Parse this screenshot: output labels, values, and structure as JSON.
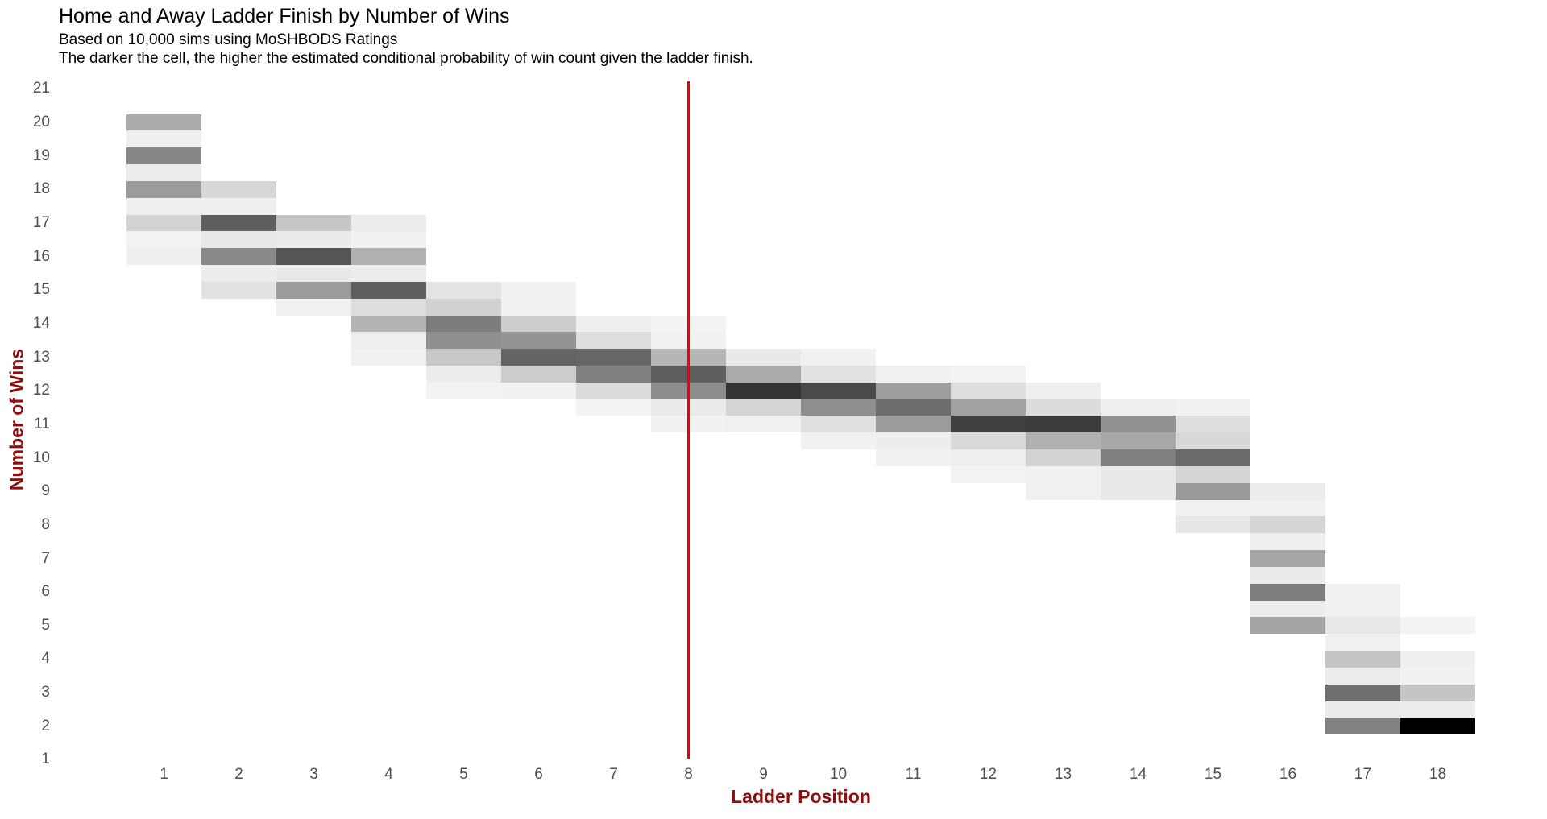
{
  "header": {
    "title": "Home and Away Ladder Finish by Number of Wins",
    "subtitle": "Based on 10,000 sims using MoSHBODS Ratings",
    "caption": "The darker the cell, the higher the estimated conditional probability of win count given the ladder finish."
  },
  "chart_data": {
    "type": "heatmap",
    "title": "Home and Away Ladder Finish by Number of Wins",
    "subtitle": "Based on 10,000 sims using MoSHBODS Ratings",
    "caption": "The darker the cell, the higher the estimated conditional probability of win count given the ladder finish.",
    "xlabel": "Ladder Position",
    "ylabel": "Number of Wins",
    "x_ticks": [
      1,
      2,
      3,
      4,
      5,
      6,
      7,
      8,
      9,
      10,
      11,
      12,
      13,
      14,
      15,
      16,
      17,
      18
    ],
    "y_ticks": [
      21,
      20,
      19,
      18,
      17,
      16,
      15,
      14,
      13,
      12,
      11,
      10,
      9,
      8,
      7,
      6,
      5,
      4,
      3,
      2,
      1
    ],
    "win_step": 0.5,
    "shading_note": "darker cell = higher estimated conditional probability of win count given ladder finish; grayscale hex per cell",
    "reference_line_x": 8,
    "legend_position": "none",
    "grid": false,
    "colors": {
      "reference_line": "#ee0000",
      "axis_title": "#8f0f0f",
      "tick_label": "#4d4d4d",
      "background": "#ffffff",
      "max_cell": "#000000"
    },
    "cells": [
      [
        20,
        1,
        "#ababab"
      ],
      [
        19.5,
        1,
        "#eeeeee"
      ],
      [
        19,
        1,
        "#878787"
      ],
      [
        18.5,
        1,
        "#ececec"
      ],
      [
        18,
        1,
        "#9b9b9b"
      ],
      [
        18,
        2,
        "#d7d7d7"
      ],
      [
        17.5,
        1,
        "#efefef"
      ],
      [
        17.5,
        2,
        "#efefef"
      ],
      [
        17,
        1,
        "#d2d2d2"
      ],
      [
        17,
        2,
        "#5e5e5e"
      ],
      [
        17,
        3,
        "#c6c6c6"
      ],
      [
        17,
        4,
        "#ececec"
      ],
      [
        16.5,
        1,
        "#f2f2f2"
      ],
      [
        16.5,
        2,
        "#e9e9e9"
      ],
      [
        16.5,
        3,
        "#ebebeb"
      ],
      [
        16.5,
        4,
        "#f1f1f1"
      ],
      [
        16,
        1,
        "#efefef"
      ],
      [
        16,
        2,
        "#888888"
      ],
      [
        16,
        3,
        "#555555"
      ],
      [
        16,
        4,
        "#b1b1b1"
      ],
      [
        15.5,
        2,
        "#ededed"
      ],
      [
        15.5,
        3,
        "#e9e9e9"
      ],
      [
        15.5,
        4,
        "#ececec"
      ],
      [
        15,
        2,
        "#e2e2e2"
      ],
      [
        15,
        3,
        "#9b9b9b"
      ],
      [
        15,
        4,
        "#5e5e5e"
      ],
      [
        15,
        5,
        "#e3e3e3"
      ],
      [
        15,
        6,
        "#f1f1f1"
      ],
      [
        14.5,
        3,
        "#f0f0f0"
      ],
      [
        14.5,
        4,
        "#dedede"
      ],
      [
        14.5,
        5,
        "#d1d1d1"
      ],
      [
        14.5,
        6,
        "#f1f1f1"
      ],
      [
        14,
        4,
        "#b4b4b4"
      ],
      [
        14,
        5,
        "#7c7c7c"
      ],
      [
        14,
        6,
        "#cccccc"
      ],
      [
        14,
        7,
        "#eeeeee"
      ],
      [
        14,
        8,
        "#f2f2f2"
      ],
      [
        13.5,
        4,
        "#eeeeee"
      ],
      [
        13.5,
        5,
        "#8f8f8f"
      ],
      [
        13.5,
        6,
        "#939393"
      ],
      [
        13.5,
        7,
        "#dedede"
      ],
      [
        13.5,
        8,
        "#f1f1f1"
      ],
      [
        13,
        4,
        "#f1f1f1"
      ],
      [
        13,
        5,
        "#c8c8c8"
      ],
      [
        13,
        6,
        "#646464"
      ],
      [
        13,
        7,
        "#666666"
      ],
      [
        13,
        8,
        "#b5b5b5"
      ],
      [
        13,
        9,
        "#e9e9e9"
      ],
      [
        13,
        10,
        "#f1f1f1"
      ],
      [
        12.5,
        5,
        "#ececec"
      ],
      [
        12.5,
        6,
        "#cccccc"
      ],
      [
        12.5,
        7,
        "#818181"
      ],
      [
        12.5,
        8,
        "#5f5f5f"
      ],
      [
        12.5,
        9,
        "#ababab"
      ],
      [
        12.5,
        10,
        "#e2e2e2"
      ],
      [
        12.5,
        11,
        "#f1f1f1"
      ],
      [
        12.5,
        12,
        "#f2f2f2"
      ],
      [
        12,
        5,
        "#f2f2f2"
      ],
      [
        12,
        6,
        "#f1f1f1"
      ],
      [
        12,
        7,
        "#dcdcdc"
      ],
      [
        12,
        8,
        "#8d8d8d"
      ],
      [
        12,
        9,
        "#333333"
      ],
      [
        12,
        10,
        "#4a4a4a"
      ],
      [
        12,
        11,
        "#9e9e9e"
      ],
      [
        12,
        12,
        "#dedede"
      ],
      [
        12,
        13,
        "#efefef"
      ],
      [
        11.5,
        7,
        "#f2f2f2"
      ],
      [
        11.5,
        8,
        "#ebebeb"
      ],
      [
        11.5,
        9,
        "#d4d4d4"
      ],
      [
        11.5,
        10,
        "#8f8f8f"
      ],
      [
        11.5,
        11,
        "#6d6d6d"
      ],
      [
        11.5,
        12,
        "#a2a2a2"
      ],
      [
        11.5,
        13,
        "#dcdcdc"
      ],
      [
        11.5,
        14,
        "#eeeeee"
      ],
      [
        11.5,
        15,
        "#f1f1f1"
      ],
      [
        11,
        8,
        "#f1f1f1"
      ],
      [
        11,
        9,
        "#f0f0f0"
      ],
      [
        11,
        10,
        "#e0e0e0"
      ],
      [
        11,
        11,
        "#9b9b9b"
      ],
      [
        11,
        12,
        "#404040"
      ],
      [
        11,
        13,
        "#3c3c3c"
      ],
      [
        11,
        14,
        "#929292"
      ],
      [
        11,
        15,
        "#dedede"
      ],
      [
        10.5,
        10,
        "#f1f1f1"
      ],
      [
        10.5,
        11,
        "#ededed"
      ],
      [
        10.5,
        12,
        "#d9d9d9"
      ],
      [
        10.5,
        13,
        "#b0b0b0"
      ],
      [
        10.5,
        14,
        "#a8a8a8"
      ],
      [
        10.5,
        15,
        "#d8d8d8"
      ],
      [
        10,
        11,
        "#f1f1f1"
      ],
      [
        10,
        12,
        "#eeeeee"
      ],
      [
        10,
        13,
        "#d2d2d2"
      ],
      [
        10,
        14,
        "#7f7f7f"
      ],
      [
        10,
        15,
        "#6a6a6a"
      ],
      [
        9.5,
        12,
        "#f2f2f2"
      ],
      [
        9.5,
        13,
        "#f0f0f0"
      ],
      [
        9.5,
        14,
        "#e8e8e8"
      ],
      [
        9.5,
        15,
        "#d4d4d4"
      ],
      [
        9,
        13,
        "#f0f0f0"
      ],
      [
        9,
        14,
        "#e9e9e9"
      ],
      [
        9,
        15,
        "#9a9a9a"
      ],
      [
        9,
        16,
        "#ededed"
      ],
      [
        8.5,
        15,
        "#f0f0f0"
      ],
      [
        8.5,
        16,
        "#f0f0f0"
      ],
      [
        8,
        15,
        "#e7e7e7"
      ],
      [
        8,
        16,
        "#d6d6d6"
      ],
      [
        7.5,
        16,
        "#efefef"
      ],
      [
        7,
        16,
        "#a7a7a7"
      ],
      [
        6.5,
        16,
        "#ebebeb"
      ],
      [
        6,
        16,
        "#7e7e7e"
      ],
      [
        6,
        17,
        "#f0f0f0"
      ],
      [
        5.5,
        16,
        "#ededed"
      ],
      [
        5.5,
        17,
        "#f1f1f1"
      ],
      [
        5,
        16,
        "#a5a5a5"
      ],
      [
        5,
        17,
        "#e8e8e8"
      ],
      [
        5,
        18,
        "#f2f2f2"
      ],
      [
        4.5,
        17,
        "#f0f0f0"
      ],
      [
        4,
        17,
        "#c5c5c5"
      ],
      [
        4,
        18,
        "#efefef"
      ],
      [
        3.5,
        17,
        "#ececec"
      ],
      [
        3.5,
        18,
        "#f1f1f1"
      ],
      [
        3,
        17,
        "#6f6f6f"
      ],
      [
        3,
        18,
        "#c5c5c5"
      ],
      [
        2.5,
        17,
        "#ebebeb"
      ],
      [
        2.5,
        18,
        "#ececec"
      ],
      [
        2,
        17,
        "#828282"
      ],
      [
        2,
        18,
        "#000000"
      ]
    ]
  }
}
